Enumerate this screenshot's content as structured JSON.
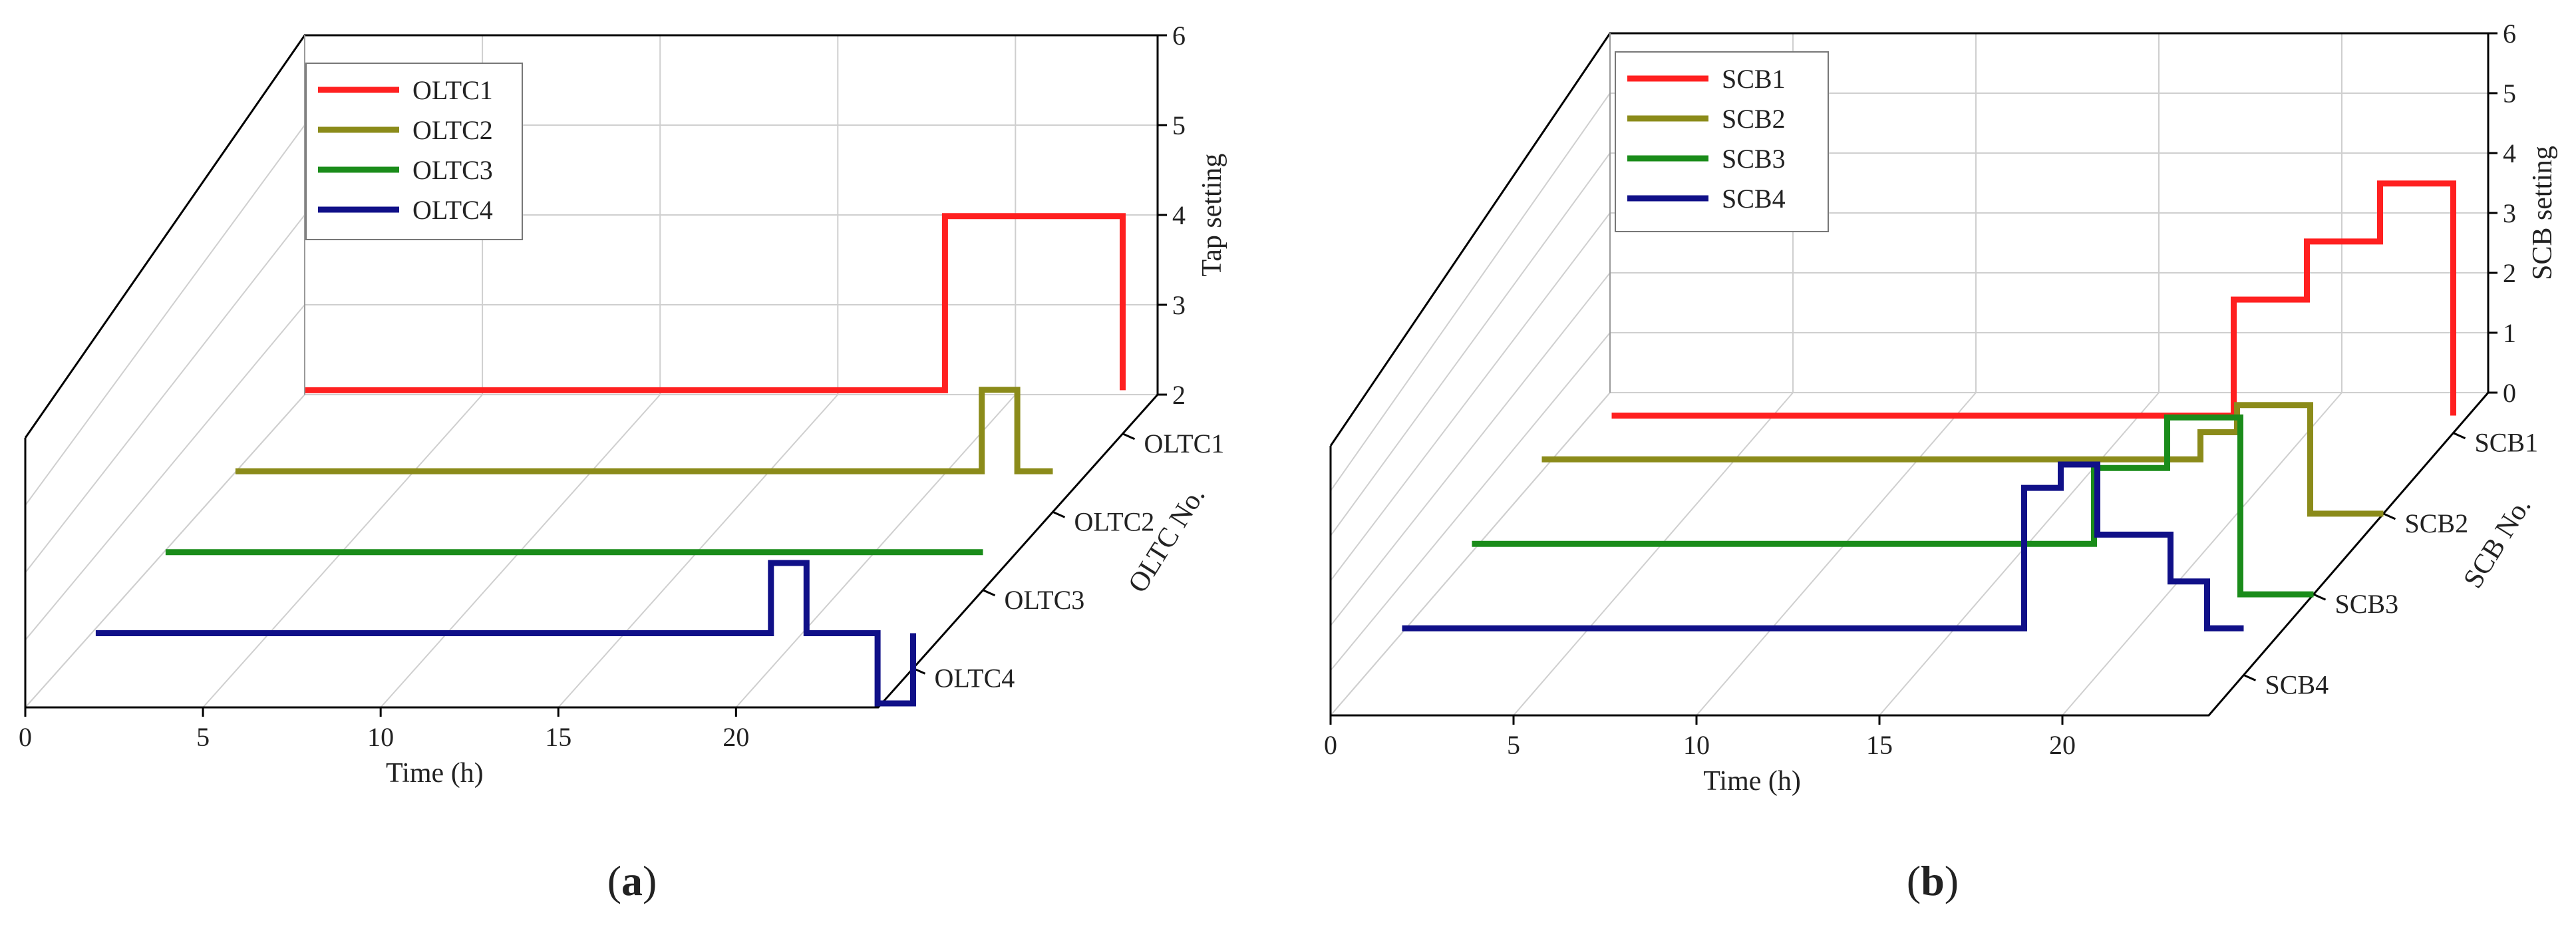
{
  "chart_data": [
    {
      "type": "line",
      "subtype": "3d-step",
      "panel_label": "a",
      "xlabel": "Time (h)",
      "ylabel": "OLTC No.",
      "zlabel": "Tap setting",
      "x_ticks": [
        0,
        5,
        10,
        15,
        20
      ],
      "xlim": [
        0,
        24
      ],
      "z_ticks": [
        2,
        3,
        4,
        5,
        6
      ],
      "zlim": [
        2,
        6
      ],
      "categories": [
        "OLTC1",
        "OLTC2",
        "OLTC3",
        "OLTC4"
      ],
      "series": [
        {
          "name": "OLTC1",
          "color": "#ff2020",
          "steps": [
            [
              1,
              2.5
            ],
            [
              19,
              4.5
            ],
            [
              24,
              2.5
            ]
          ]
        },
        {
          "name": "OLTC2",
          "color": "#8b8b1a",
          "steps": [
            [
              1,
              2.5
            ],
            [
              22,
              3.5
            ],
            [
              23,
              2.5
            ]
          ]
        },
        {
          "name": "OLTC3",
          "color": "#1a8c1a",
          "steps": [
            [
              1,
              2.5
            ]
          ]
        },
        {
          "name": "OLTC4",
          "color": "#101088",
          "steps": [
            [
              1,
              2.5
            ],
            [
              20,
              3.5
            ],
            [
              21,
              2.5
            ],
            [
              23,
              1.5
            ],
            [
              24,
              2.5
            ]
          ]
        }
      ]
    },
    {
      "type": "line",
      "subtype": "3d-step",
      "panel_label": "b",
      "xlabel": "Time (h)",
      "ylabel": "SCB No.",
      "zlabel": "SCB setting",
      "x_ticks": [
        0,
        5,
        10,
        15,
        20
      ],
      "xlim": [
        0,
        24
      ],
      "z_ticks": [
        0,
        1,
        2,
        3,
        4,
        5,
        6
      ],
      "zlim": [
        0,
        6
      ],
      "categories": [
        "SCB1",
        "SCB2",
        "SCB3",
        "SCB4"
      ],
      "series": [
        {
          "name": "SCB1",
          "color": "#ff2020",
          "steps": [
            [
              1,
              0.3
            ],
            [
              18,
              2.3
            ],
            [
              20,
              3.3
            ],
            [
              22,
              4.3
            ],
            [
              24,
              0.3
            ]
          ]
        },
        {
          "name": "SCB2",
          "color": "#8b8b1a",
          "steps": [
            [
              1,
              1
            ],
            [
              19,
              1.5
            ],
            [
              20,
              2
            ],
            [
              22,
              0
            ]
          ]
        },
        {
          "name": "SCB3",
          "color": "#1a8c1a",
          "steps": [
            [
              1,
              1
            ],
            [
              18,
              2.5
            ],
            [
              20,
              3.5
            ],
            [
              22,
              0
            ]
          ]
        },
        {
          "name": "SCB4",
          "color": "#101088",
          "steps": [
            [
              1,
              1
            ],
            [
              18,
              4
            ],
            [
              19,
              4.5
            ],
            [
              20,
              3
            ],
            [
              22,
              2
            ],
            [
              23,
              1
            ]
          ]
        }
      ]
    }
  ]
}
